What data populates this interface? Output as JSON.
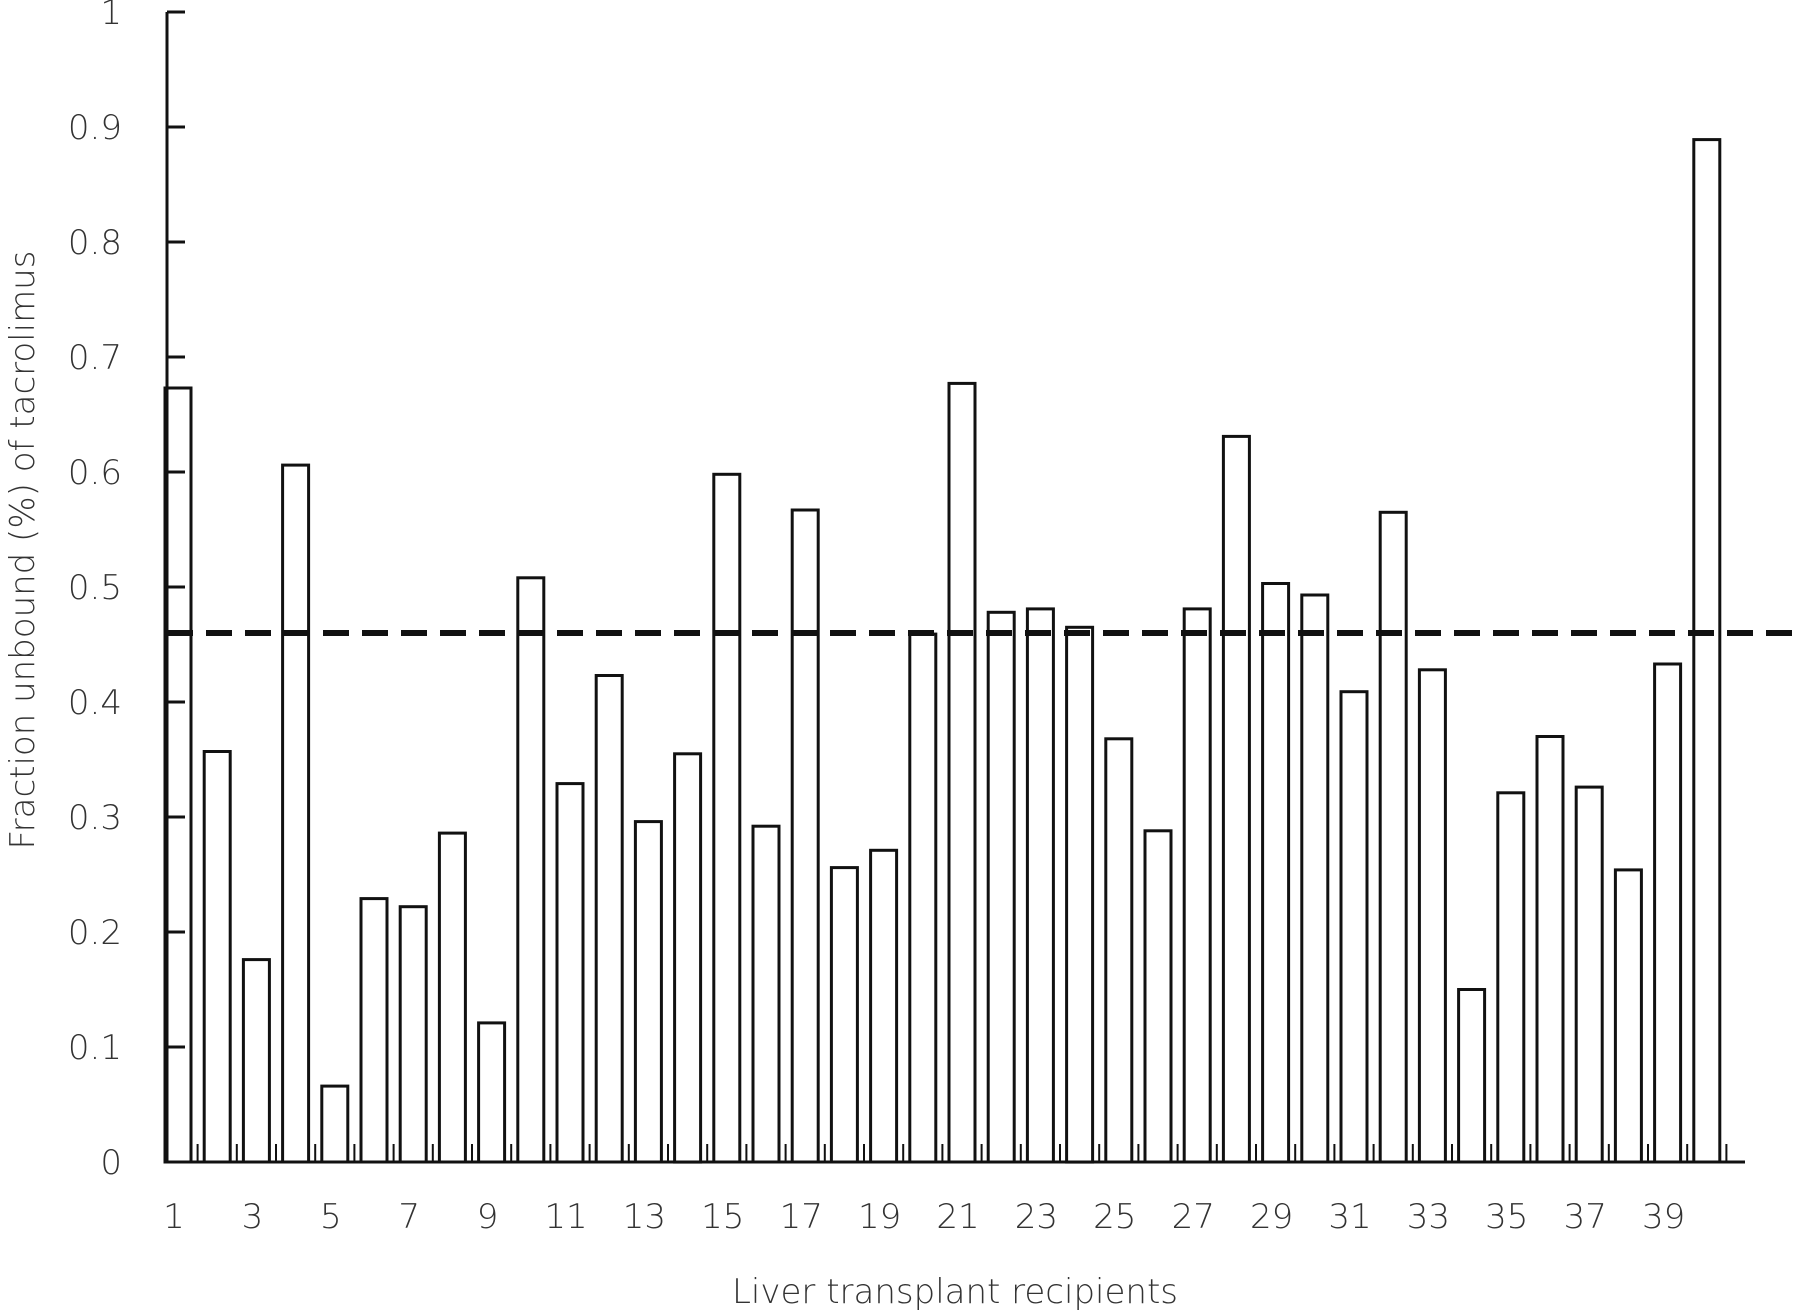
{
  "chart_data": {
    "type": "bar",
    "title": "",
    "xlabel": "Liver transplant recipients",
    "ylabel": "Fraction unbound (%) of tacrolimus",
    "ylim": [
      0,
      1
    ],
    "yticks": [
      "0",
      "0.1",
      "0.2",
      "0.3",
      "0.4",
      "0.5",
      "0.6",
      "0.7",
      "0.8",
      "0.9",
      "1"
    ],
    "xtick_labels": [
      "1",
      "3",
      "5",
      "7",
      "9",
      "11",
      "13",
      "15",
      "17",
      "19",
      "21",
      "23",
      "25",
      "27",
      "29",
      "31",
      "33",
      "35",
      "37",
      "39"
    ],
    "categories": [
      "1",
      "2",
      "3",
      "4",
      "5",
      "6",
      "7",
      "8",
      "9",
      "10",
      "11",
      "12",
      "13",
      "14",
      "15",
      "16",
      "17",
      "18",
      "19",
      "20",
      "21",
      "22",
      "23",
      "24",
      "25",
      "26",
      "27",
      "28",
      "29",
      "30",
      "31",
      "32",
      "33",
      "34",
      "35",
      "36",
      "37",
      "38",
      "39",
      "40"
    ],
    "values": [
      0.673,
      0.357,
      0.176,
      0.606,
      0.066,
      0.229,
      0.222,
      0.286,
      0.121,
      0.508,
      0.329,
      0.423,
      0.296,
      0.355,
      0.598,
      0.292,
      0.567,
      0.256,
      0.271,
      0.459,
      0.677,
      0.478,
      0.481,
      0.465,
      0.368,
      0.288,
      0.481,
      0.631,
      0.503,
      0.493,
      0.409,
      0.565,
      0.428,
      0.15,
      0.321,
      0.37,
      0.326,
      0.254,
      0.433,
      0.889
    ],
    "reference_line": {
      "value": 0.46,
      "style": "dashed"
    },
    "grid": false,
    "legend": "none",
    "colors": {
      "bar_fill": "#ffffff",
      "bar_stroke": "#111111",
      "axis": "#111111",
      "reference_line": "#111111"
    }
  }
}
